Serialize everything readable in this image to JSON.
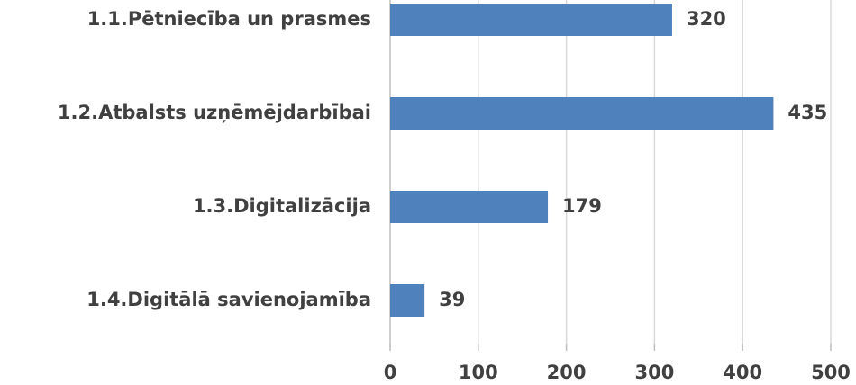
{
  "chart_data": {
    "type": "bar",
    "orientation": "horizontal",
    "categories": [
      "1.1.Pētniecība un prasmes",
      "1.2.Atbalsts uzņēmējdarbībai",
      "1.3.Digitalizācija",
      "1.4.Digitālā savienojamība"
    ],
    "values": [
      320,
      435,
      179,
      39
    ],
    "color": "#4f81bd",
    "xlim": [
      0,
      500
    ],
    "xticks": [
      0,
      100,
      200,
      300,
      400,
      500
    ],
    "grid": true
  }
}
